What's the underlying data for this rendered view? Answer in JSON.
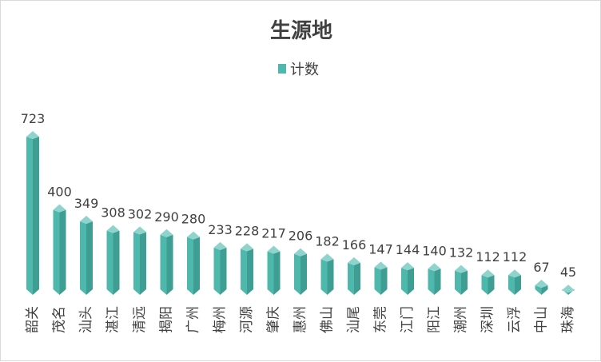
{
  "chart_data": {
    "type": "bar",
    "title": "生源地",
    "legend": {
      "entries": [
        "计数"
      ],
      "position": "top"
    },
    "xlabel": "",
    "ylabel": "",
    "grid": false,
    "ylim": [
      0,
      723
    ],
    "categories": [
      "韶关",
      "茂名",
      "汕头",
      "湛江",
      "清远",
      "揭阳",
      "广州",
      "梅州",
      "河源",
      "肇庆",
      "惠州",
      "佛山",
      "汕尾",
      "东莞",
      "江门",
      "阳江",
      "潮州",
      "深圳",
      "云浮",
      "中山",
      "珠海"
    ],
    "series": [
      {
        "name": "计数",
        "values": [
          723,
          400,
          349,
          308,
          302,
          290,
          280,
          233,
          228,
          217,
          206,
          182,
          166,
          147,
          144,
          140,
          132,
          112,
          112,
          67,
          45
        ]
      }
    ],
    "colors": {
      "bar_front": "#4fb8ac",
      "bar_side": "#3f9e93",
      "bar_top": "#8fd4cc",
      "legend_marker": "#4fb8ac"
    }
  }
}
